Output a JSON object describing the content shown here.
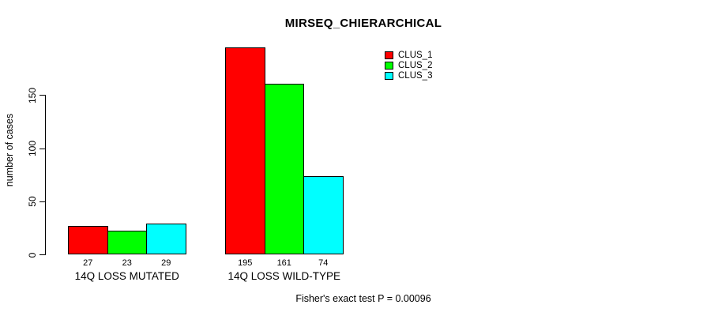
{
  "chart_data": {
    "type": "bar",
    "title": "MIRSEQ_CHIERARCHICAL",
    "ylabel": "number of cases",
    "xlabel": "",
    "categories": [
      "14Q LOSS MUTATED",
      "14Q LOSS WILD-TYPE"
    ],
    "series": [
      {
        "name": "CLUS_1",
        "color": "#ff0000",
        "values": [
          27,
          195
        ]
      },
      {
        "name": "CLUS_2",
        "color": "#00ff00",
        "values": [
          23,
          161
        ]
      },
      {
        "name": "CLUS_3",
        "color": "#00ffff",
        "values": [
          29,
          74
        ]
      }
    ],
    "yticks": [
      0,
      50,
      100,
      150
    ],
    "ylim": [
      0,
      195
    ],
    "grid": false,
    "legend_position": "top-right",
    "axis_color": "#000000",
    "bar_border_color": "#000000",
    "annotation": "Fisher's exact test P = 0.00096"
  }
}
